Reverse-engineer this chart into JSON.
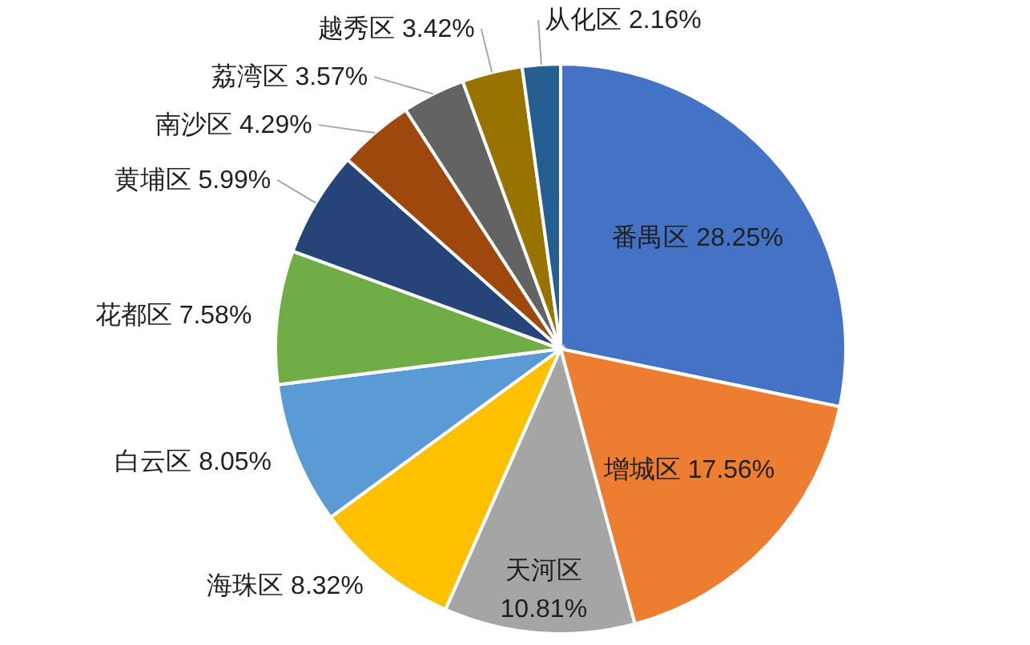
{
  "chart_data": {
    "type": "pie",
    "categories": [
      "番禺区",
      "增城区",
      "天河区",
      "海珠区",
      "白云区",
      "花都区",
      "黄埔区",
      "南沙区",
      "荔湾区",
      "越秀区",
      "从化区"
    ],
    "values": [
      28.25,
      17.56,
      10.81,
      8.32,
      8.05,
      7.58,
      5.99,
      4.29,
      3.57,
      3.42,
      2.16
    ],
    "colors": [
      "#4472c4",
      "#ed7d31",
      "#a5a5a5",
      "#ffc000",
      "#5b9bd5",
      "#70ad47",
      "#264478",
      "#9e480e",
      "#636363",
      "#997300",
      "#255e91"
    ],
    "value_labels": [
      "28.25%",
      "17.56%",
      "10.81%",
      "8.32%",
      "8.05%",
      "7.58%",
      "5.99%",
      "4.29%",
      "3.57%",
      "3.42%",
      "2.16%"
    ]
  }
}
